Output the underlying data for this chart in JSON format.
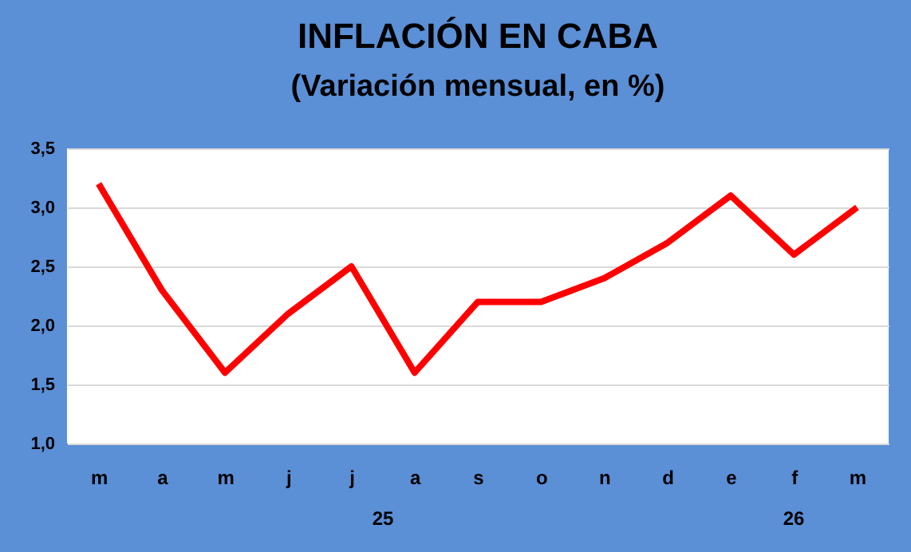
{
  "chart_data": {
    "type": "line",
    "title": "INFLACIÓN EN CABA",
    "subtitle": "(Variación mensual,  en %)",
    "categories": [
      "m",
      "a",
      "m",
      "j",
      "j",
      "a",
      "s",
      "o",
      "n",
      "d",
      "e",
      "f",
      "m"
    ],
    "series": [
      {
        "color": "#ff0000",
        "values": [
          3.2,
          2.3,
          1.6,
          2.1,
          2.5,
          1.6,
          2.2,
          2.2,
          2.4,
          2.7,
          3.1,
          2.6,
          3.0
        ]
      }
    ],
    "ylim": [
      1.0,
      3.5
    ],
    "yticks": [
      {
        "value": 1.0,
        "label": "1,0"
      },
      {
        "value": 1.5,
        "label": "1,5"
      },
      {
        "value": 2.0,
        "label": "2,0"
      },
      {
        "value": 2.5,
        "label": "2,5"
      },
      {
        "value": 3.0,
        "label": "3,0"
      },
      {
        "value": 3.5,
        "label": "3,5"
      }
    ],
    "grid": "y",
    "marker": "none",
    "line_style": "solid",
    "annotations": [
      "25",
      "26"
    ]
  }
}
